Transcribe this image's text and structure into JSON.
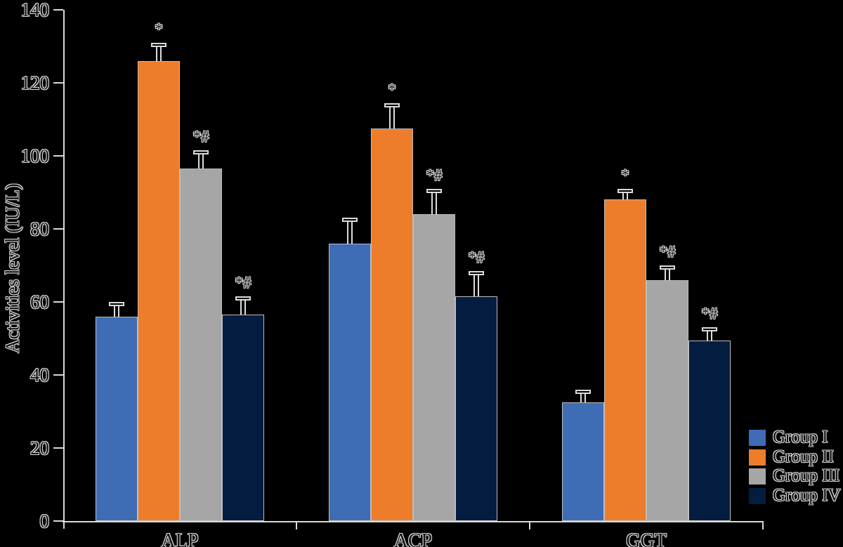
{
  "figure": {
    "background_color": "#000000",
    "axis_color": "#d9d9d9",
    "text_style": "hollow outlined serif"
  },
  "chart_data": {
    "type": "bar",
    "title": "",
    "xlabel": "",
    "ylabel": "Activities level (IU/L)",
    "ylim": [
      0,
      140
    ],
    "ytick_step": 20,
    "yticks": [
      0,
      20,
      40,
      60,
      80,
      100,
      120,
      140
    ],
    "grid": "off",
    "error_bars": "upper, hollow caps",
    "categories": [
      "ALP",
      "ACP",
      "GGT"
    ],
    "series": [
      {
        "name": "Group I",
        "color": "#3E6DB5",
        "values": [
          56,
          76,
          32.5
        ],
        "errors": [
          4,
          7,
          3.5
        ],
        "annotations": [
          "",
          "",
          ""
        ]
      },
      {
        "name": "Group II",
        "color": "#ED7D2B",
        "values": [
          126,
          107.5,
          88
        ],
        "errors": [
          5,
          7,
          3
        ],
        "annotations": [
          "*",
          "*",
          "*"
        ]
      },
      {
        "name": "Group III",
        "color": "#A6A6A6",
        "values": [
          96.5,
          84,
          66
        ],
        "errors": [
          5,
          7,
          4
        ],
        "annotations": [
          "*#",
          "*#",
          "*#"
        ]
      },
      {
        "name": "Group IV",
        "color": "#041C3F",
        "values": [
          56.5,
          61.5,
          49.5
        ],
        "errors": [
          5,
          7,
          3.5
        ],
        "annotations": [
          "*#",
          "*#",
          "*#"
        ]
      }
    ],
    "legend": {
      "position": "lower right",
      "labels": [
        "Group I",
        "Group II",
        "Group III",
        "Group IV"
      ]
    }
  }
}
